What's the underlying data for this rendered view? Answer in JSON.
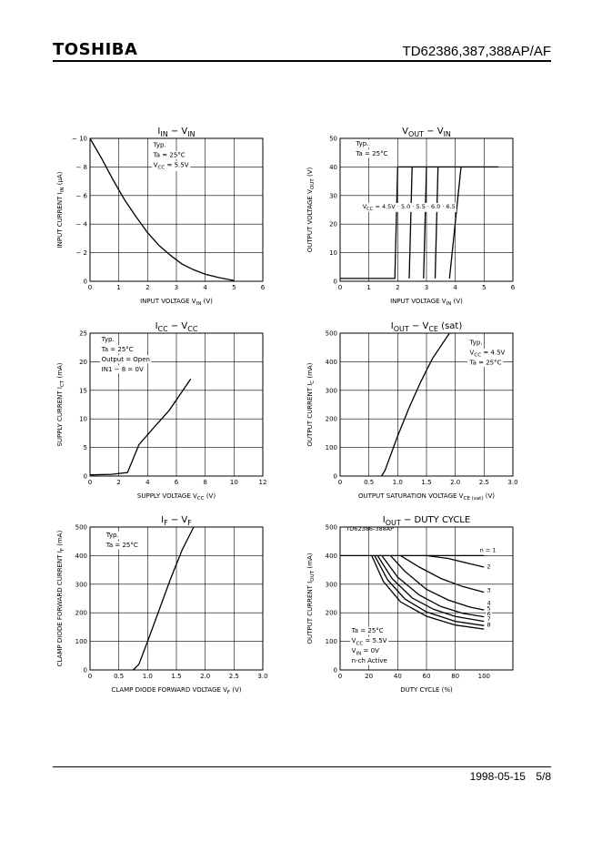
{
  "header": {
    "logo": "TOSHIBA",
    "doc_number": "TD62386,387,388AP/AF"
  },
  "footer": {
    "date": "1998-05-15",
    "page": "5/8"
  },
  "chart_data": [
    {
      "id": "iin-vin",
      "type": "line",
      "title": [
        "I",
        "IN",
        " − V",
        "IN",
        ""
      ],
      "xlabel": [
        "INPUT VOLTAGE   V",
        "IN",
        "   (V)"
      ],
      "ylabel": [
        "INPUT CURRENT   I",
        "IN",
        "   (μA)"
      ],
      "xlim": [
        0,
        6
      ],
      "ylim": [
        0,
        10
      ],
      "xticks": [
        0,
        1,
        2,
        3,
        4,
        5,
        6
      ],
      "yticks": [
        0,
        2,
        4,
        6,
        8,
        10
      ],
      "xticklabels": [
        "0",
        "1",
        "2",
        "3",
        "4",
        "5",
        "6"
      ],
      "yticklabels": [
        "0",
        "− 2",
        "− 4",
        "− 6",
        "− 8",
        "− 10"
      ],
      "notes": [
        [
          "Typ."
        ],
        [
          "Ta = 25°C"
        ],
        [
          "V",
          "CC",
          " = 5.5V"
        ]
      ],
      "note_pos": [
        2.2,
        9.4
      ],
      "series": [
        {
          "name": "Iin",
          "points": [
            [
              0,
              10
            ],
            [
              0.4,
              8.6
            ],
            [
              0.8,
              7.1
            ],
            [
              1.2,
              5.7
            ],
            [
              1.6,
              4.5
            ],
            [
              2.0,
              3.4
            ],
            [
              2.4,
              2.5
            ],
            [
              2.8,
              1.8
            ],
            [
              3.2,
              1.2
            ],
            [
              3.6,
              0.8
            ],
            [
              4.0,
              0.5
            ],
            [
              4.5,
              0.25
            ],
            [
              5.0,
              0.05
            ]
          ]
        }
      ]
    },
    {
      "id": "vout-vin",
      "type": "line",
      "title": [
        "V",
        "OUT",
        " − V",
        "IN",
        ""
      ],
      "xlabel": [
        "INPUT VOLTAGE   V",
        "IN",
        "   (V)"
      ],
      "ylabel": [
        "OUTPUT VOLTAGE   V",
        "OUT",
        "   (V)"
      ],
      "xlim": [
        0,
        6
      ],
      "ylim": [
        0,
        50
      ],
      "xticks": [
        0,
        1,
        2,
        3,
        4,
        5,
        6
      ],
      "yticks": [
        0,
        10,
        20,
        30,
        40,
        50
      ],
      "xticklabels": [
        "0",
        "1",
        "2",
        "3",
        "4",
        "5",
        "6"
      ],
      "yticklabels": [
        "0",
        "10",
        "20",
        "30",
        "40",
        "50"
      ],
      "notes": [
        [
          "Typ."
        ],
        [
          "Ta = 25°C"
        ]
      ],
      "note_pos": [
        0.55,
        47.5
      ],
      "series": [
        {
          "name": "VCC=4.5V",
          "points": [
            [
              0,
              1
            ],
            [
              1.9,
              1
            ],
            [
              2.0,
              40
            ],
            [
              5.5,
              40
            ]
          ]
        },
        {
          "name": "VCC=5.0V",
          "points": [
            [
              2.4,
              1
            ],
            [
              2.5,
              40
            ]
          ]
        },
        {
          "name": "VCC=5.5V",
          "points": [
            [
              2.9,
              1
            ],
            [
              3.0,
              40
            ]
          ]
        },
        {
          "name": "VCC=6.0V",
          "points": [
            [
              3.3,
              1
            ],
            [
              3.4,
              40
            ]
          ]
        },
        {
          "name": "VCC=6.5V",
          "points": [
            [
              3.8,
              1
            ],
            [
              4.2,
              40
            ]
          ]
        }
      ],
      "annotations": [
        [
          "V",
          "CC",
          " = 4.5V · 5.0 · 5.5 · 6.0 · 6.5"
        ]
      ],
      "annotation_pos": [
        [
          0.78,
          25.5
        ]
      ]
    },
    {
      "id": "icc-vcc",
      "type": "line",
      "title": [
        "I",
        "CC",
        " − V",
        "CC",
        ""
      ],
      "xlabel": [
        "SUPPLY VOLTAGE   V",
        "CC",
        "   (V)"
      ],
      "ylabel": [
        "SUPPLY CURRENT   I",
        "CT",
        "   (mA)"
      ],
      "xlim": [
        0,
        12
      ],
      "ylim": [
        0,
        25
      ],
      "xticks": [
        0,
        2,
        4,
        6,
        8,
        10,
        12
      ],
      "yticks": [
        0,
        5,
        10,
        15,
        20,
        25
      ],
      "xticklabels": [
        "0",
        "2",
        "4",
        "6",
        "8",
        "10",
        "12"
      ],
      "yticklabels": [
        "0",
        "5",
        "10",
        "15",
        "20",
        "25"
      ],
      "notes": [
        [
          "Typ."
        ],
        [
          "Ta = 25°C"
        ],
        [
          "Output = Open"
        ],
        [
          "IN1 − 8 = 0V"
        ]
      ],
      "note_pos": [
        0.8,
        23.6
      ],
      "series": [
        {
          "name": "Icc",
          "points": [
            [
              0,
              0.2
            ],
            [
              1.5,
              0.3
            ],
            [
              2.6,
              0.6
            ],
            [
              3.4,
              5.5
            ],
            [
              4.5,
              8.7
            ],
            [
              5.5,
              11.5
            ],
            [
              7.0,
              17.0
            ]
          ]
        }
      ]
    },
    {
      "id": "iout-vce",
      "type": "line",
      "title": [
        "I",
        "OUT",
        " − V",
        "CE",
        " (sat)"
      ],
      "xlabel": [
        "OUTPUT SATURATION VOLTAGE   V",
        "CE (sat)",
        "   (V)"
      ],
      "ylabel": [
        "OUTPUT CURRENT   I",
        "C",
        "   (mA)"
      ],
      "xlim": [
        0,
        3
      ],
      "ylim": [
        0,
        500
      ],
      "xticks": [
        0,
        0.5,
        1.0,
        1.5,
        2.0,
        2.5,
        3.0
      ],
      "yticks": [
        0,
        100,
        200,
        300,
        400,
        500
      ],
      "xticklabels": [
        "0",
        "0.5",
        "1.0",
        "1.5",
        "2.0",
        "2.5",
        "3.0"
      ],
      "yticklabels": [
        "0",
        "100",
        "200",
        "300",
        "400",
        "500"
      ],
      "notes": [
        [
          "Typ."
        ],
        [
          "V",
          "CC",
          " = 4.5V"
        ],
        [
          "Ta = 25°C"
        ]
      ],
      "note_pos": [
        2.25,
        460
      ],
      "series": [
        {
          "name": "Iout",
          "points": [
            [
              0.72,
              0
            ],
            [
              0.78,
              20
            ],
            [
              1.0,
              140
            ],
            [
              1.2,
              240
            ],
            [
              1.4,
              330
            ],
            [
              1.6,
              410
            ],
            [
              1.8,
              470
            ],
            [
              1.9,
              500
            ]
          ]
        }
      ]
    },
    {
      "id": "if-vf",
      "type": "line",
      "title": [
        "I",
        "F",
        " − V",
        "F",
        ""
      ],
      "xlabel": [
        "CLAMP DIODE FORWARD VOLTAGE   V",
        "F",
        "   (V)"
      ],
      "ylabel": [
        "CLAMP DIODE FORWARD CURRENT   I",
        "F",
        "   (mA)"
      ],
      "xlim": [
        0,
        3
      ],
      "ylim": [
        0,
        500
      ],
      "xticks": [
        0,
        0.5,
        1.0,
        1.5,
        2.0,
        2.5,
        3.0
      ],
      "yticks": [
        0,
        100,
        200,
        300,
        400,
        500
      ],
      "xticklabels": [
        "0",
        "0.5",
        "1.0",
        "1.5",
        "2.0",
        "2.5",
        "3.0"
      ],
      "yticklabels": [
        "0",
        "100",
        "200",
        "300",
        "400",
        "500"
      ],
      "notes": [
        [
          "Typ."
        ],
        [
          "Ta = 25°C"
        ]
      ],
      "note_pos": [
        0.28,
        465
      ],
      "series": [
        {
          "name": "If",
          "points": [
            [
              0.75,
              0
            ],
            [
              0.85,
              20
            ],
            [
              1.0,
              100
            ],
            [
              1.2,
              210
            ],
            [
              1.4,
              320
            ],
            [
              1.6,
              420
            ],
            [
              1.8,
              500
            ]
          ]
        }
      ]
    },
    {
      "id": "iout-duty",
      "type": "line",
      "title": [
        "I",
        "OUT",
        " − DUTY CYCLE",
        "",
        ""
      ],
      "xlabel": [
        "DUTY CYCLE   (%)"
      ],
      "ylabel": [
        "OUTPUT CURRENT   I",
        "OUT",
        "   (mA)"
      ],
      "xlim": [
        0,
        120
      ],
      "ylim": [
        0,
        500
      ],
      "xticks": [
        0,
        20,
        40,
        60,
        80,
        100
      ],
      "yticks": [
        0,
        100,
        200,
        300,
        400,
        500
      ],
      "xticklabels": [
        "0",
        "20",
        "40",
        "60",
        "80",
        "100"
      ],
      "yticklabels": [
        "0",
        "100",
        "200",
        "300",
        "400",
        "500"
      ],
      "notes": [
        [
          "Ta = 25°C"
        ],
        [
          "V",
          "CC",
          " = 5.5V"
        ],
        [
          "V",
          "IN",
          " = 0V"
        ],
        [
          "n-ch  Active"
        ]
      ],
      "note_pos": [
        8,
        130
      ],
      "top_label": [
        "TD62386-388AP"
      ],
      "top_label_pos": [
        4,
        488
      ],
      "series": [
        {
          "name": "n=1",
          "points": [
            [
              0,
              400
            ],
            [
              100,
              400
            ]
          ]
        },
        {
          "name": "2",
          "points": [
            [
              60,
              400
            ],
            [
              75,
              390
            ],
            [
              90,
              372
            ],
            [
              100,
              360
            ]
          ]
        },
        {
          "name": "3",
          "points": [
            [
              42,
              400
            ],
            [
              55,
              360
            ],
            [
              70,
              320
            ],
            [
              85,
              292
            ],
            [
              100,
              272
            ]
          ]
        },
        {
          "name": "4",
          "points": [
            [
              35,
              400
            ],
            [
              45,
              345
            ],
            [
              60,
              282
            ],
            [
              75,
              245
            ],
            [
              90,
              220
            ],
            [
              100,
              210
            ]
          ]
        },
        {
          "name": "5",
          "points": [
            [
              29,
              400
            ],
            [
              40,
              325
            ],
            [
              55,
              262
            ],
            [
              70,
              222
            ],
            [
              85,
              198
            ],
            [
              100,
              186
            ]
          ]
        },
        {
          "name": "6",
          "points": [
            [
              26,
              400
            ],
            [
              36,
              320
            ],
            [
              50,
              252
            ],
            [
              65,
              212
            ],
            [
              80,
              187
            ],
            [
              100,
              170
            ]
          ]
        },
        {
          "name": "7",
          "points": [
            [
              24,
              400
            ],
            [
              33,
              315
            ],
            [
              45,
              248
            ],
            [
              60,
              203
            ],
            [
              80,
              170
            ],
            [
              100,
              155
            ]
          ]
        },
        {
          "name": "8",
          "points": [
            [
              22,
              400
            ],
            [
              30,
              310
            ],
            [
              42,
              238
            ],
            [
              60,
              188
            ],
            [
              80,
              157
            ],
            [
              100,
              143
            ]
          ]
        }
      ],
      "annotations": [
        [
          "n = 1"
        ],
        [
          "2"
        ],
        [
          "3"
        ],
        [
          "4"
        ],
        [
          "5"
        ],
        [
          "6"
        ],
        [
          "7"
        ],
        [
          "8"
        ]
      ],
      "annotation_pos": [
        [
          97,
          413
        ],
        [
          102,
          355
        ],
        [
          102,
          272
        ],
        [
          102,
          227
        ],
        [
          102,
          208
        ],
        [
          102,
          190
        ],
        [
          102,
          172
        ],
        [
          102,
          152
        ]
      ]
    }
  ]
}
